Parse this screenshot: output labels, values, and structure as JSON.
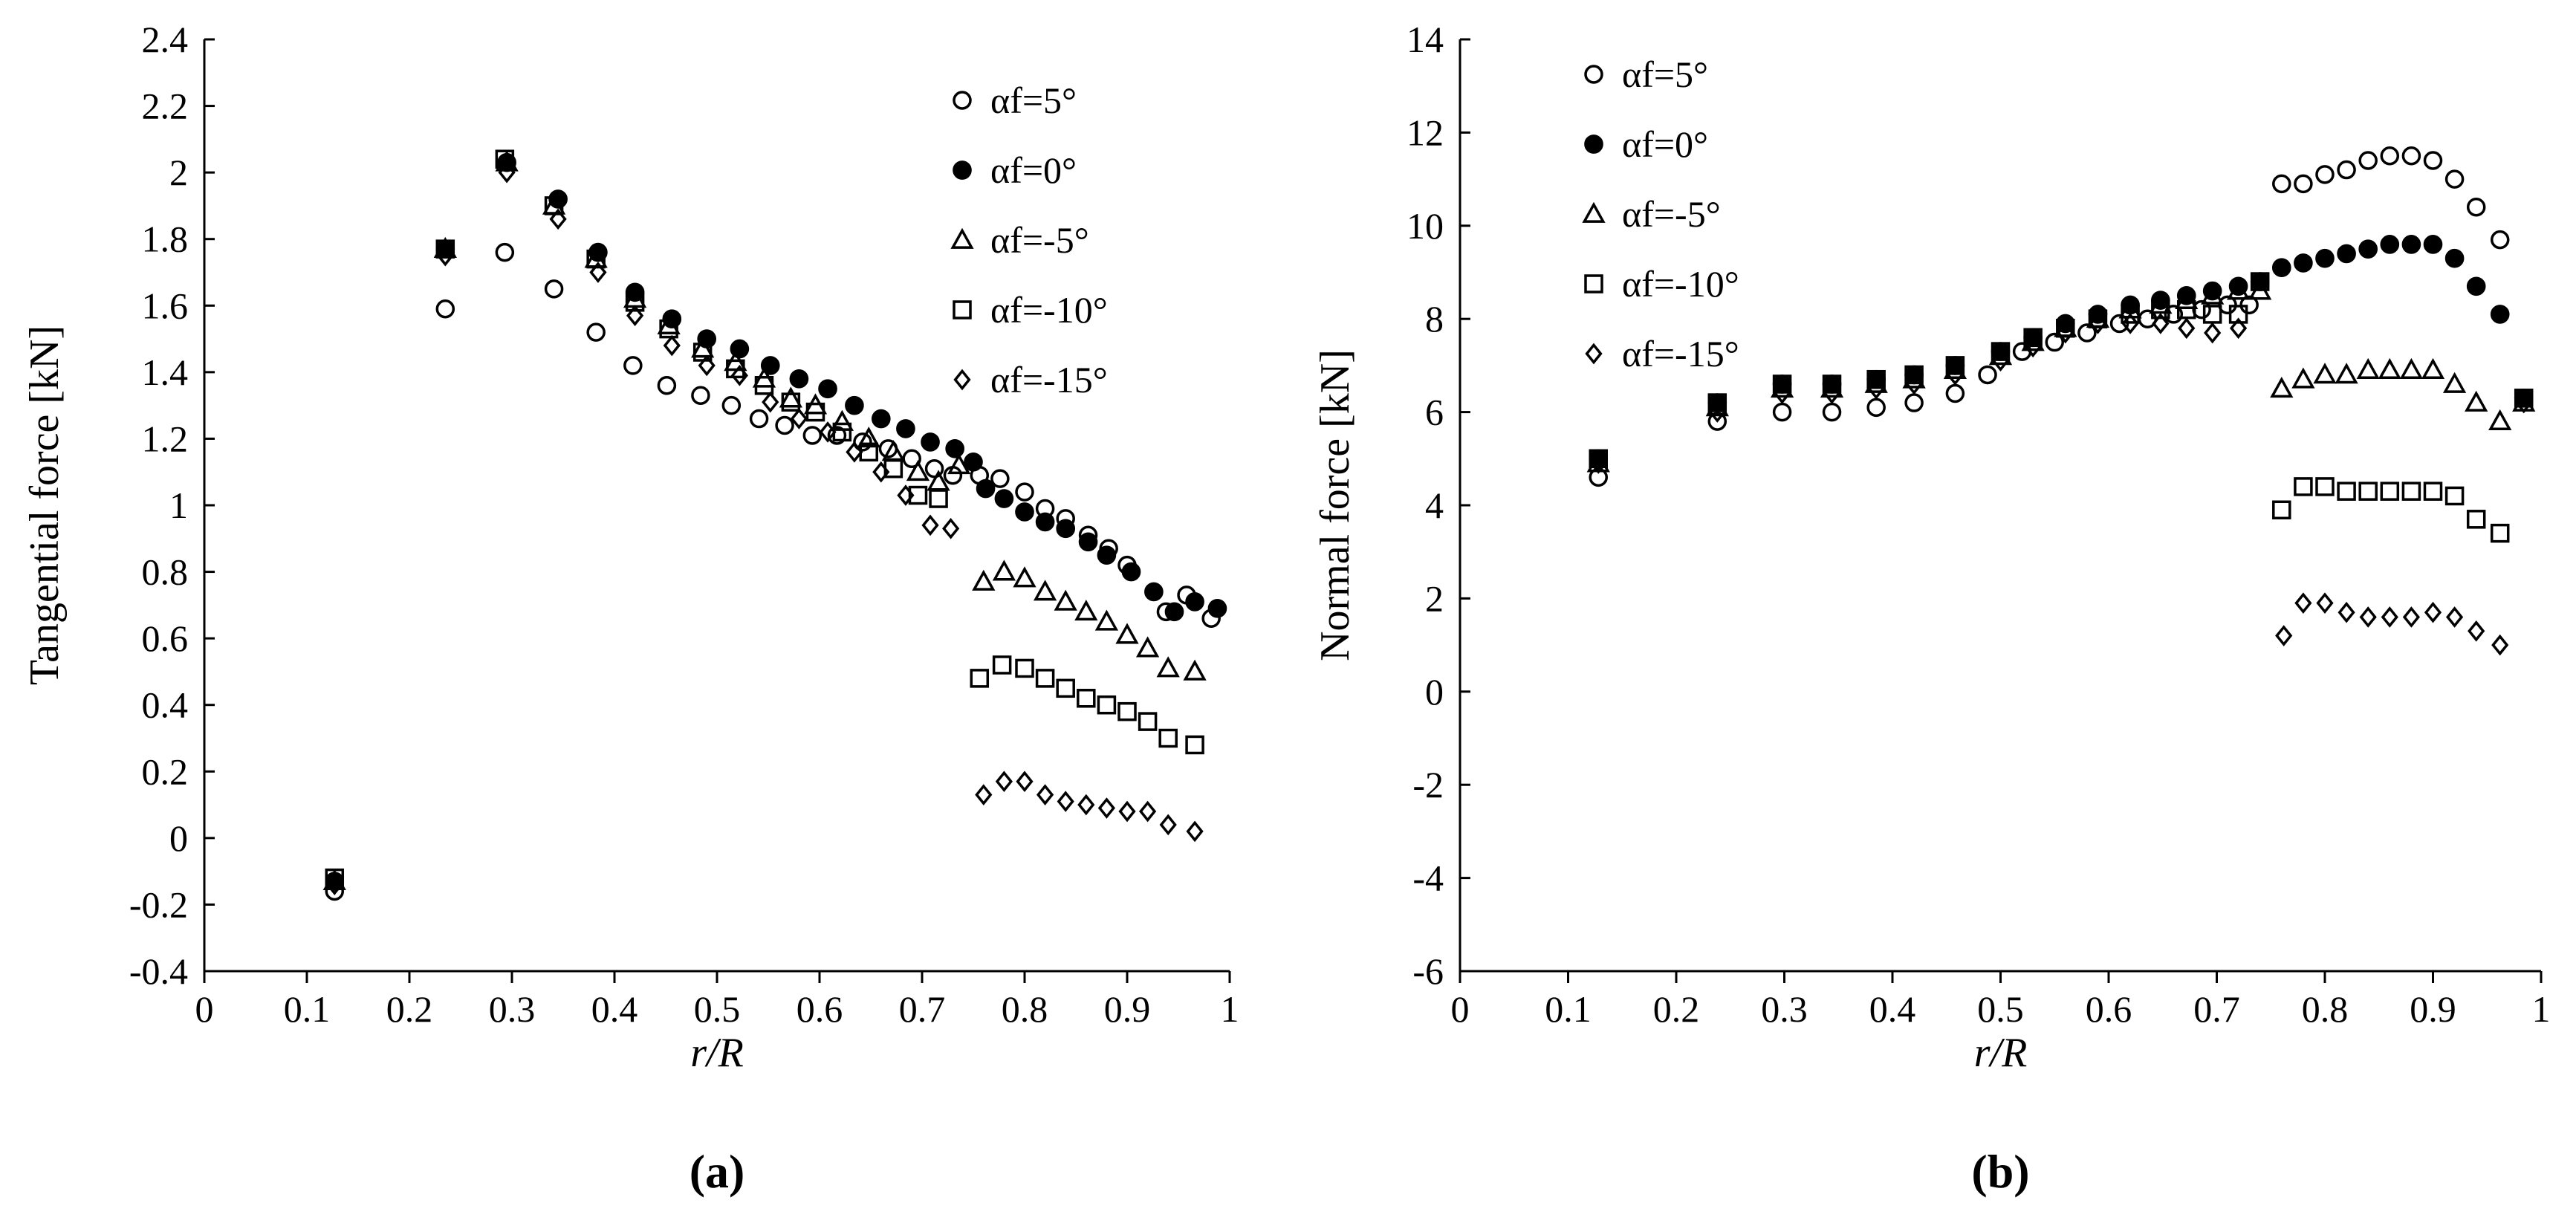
{
  "chart_data": [
    {
      "type": "scatter",
      "panel_label": "(a)",
      "xlabel": "r/R",
      "ylabel": "Tangential force [kN]",
      "xlim": [
        0,
        1
      ],
      "ylim": [
        -0.4,
        2.4
      ],
      "x_ticks": [
        0,
        0.1,
        0.2,
        0.3,
        0.4,
        0.5,
        0.6,
        0.7,
        0.8,
        0.9,
        1
      ],
      "x_tick_labels": [
        "0",
        "0.1",
        "0.2",
        "0.3",
        "0.4",
        "0.5",
        "0.6",
        "0.7",
        "0.8",
        "0.9",
        "1"
      ],
      "y_ticks": [
        -0.4,
        -0.2,
        0,
        0.2,
        0.4,
        0.6,
        0.8,
        1,
        1.2,
        1.4,
        1.6,
        1.8,
        2,
        2.2,
        2.4
      ],
      "y_tick_labels": [
        "-0.4",
        "-0.2",
        "0",
        "0.2",
        "0.4",
        "0.6",
        "0.8",
        "1",
        "1.2",
        "1.4",
        "1.6",
        "1.8",
        "2",
        "2.2",
        "2.4"
      ],
      "legend_position": "top-right",
      "series": [
        {
          "name": "αf=5°",
          "marker": "circle-open",
          "x": [
            0.127,
            0.235,
            0.293,
            0.341,
            0.382,
            0.418,
            0.451,
            0.484,
            0.514,
            0.541,
            0.566,
            0.593,
            0.617,
            0.642,
            0.667,
            0.69,
            0.712,
            0.73,
            0.756,
            0.776,
            0.8,
            0.82,
            0.84,
            0.862,
            0.882,
            0.9,
            0.938,
            0.958,
            0.982
          ],
          "y": [
            -0.16,
            1.59,
            1.76,
            1.65,
            1.52,
            1.42,
            1.36,
            1.33,
            1.3,
            1.26,
            1.24,
            1.21,
            1.21,
            1.19,
            1.17,
            1.14,
            1.11,
            1.09,
            1.09,
            1.08,
            1.04,
            0.99,
            0.96,
            0.91,
            0.87,
            0.82,
            0.68,
            0.73,
            0.66
          ]
        },
        {
          "name": "αf=0°",
          "marker": "circle-filled",
          "x": [
            0.127,
            0.235,
            0.295,
            0.345,
            0.384,
            0.42,
            0.456,
            0.49,
            0.522,
            0.552,
            0.58,
            0.608,
            0.634,
            0.66,
            0.684,
            0.708,
            0.732,
            0.75,
            0.762,
            0.78,
            0.8,
            0.82,
            0.84,
            0.862,
            0.88,
            0.904,
            0.926,
            0.946,
            0.966,
            0.988
          ],
          "y": [
            -0.13,
            1.77,
            2.03,
            1.92,
            1.76,
            1.64,
            1.56,
            1.5,
            1.47,
            1.42,
            1.38,
            1.35,
            1.3,
            1.26,
            1.23,
            1.19,
            1.17,
            1.13,
            1.05,
            1.02,
            0.98,
            0.95,
            0.93,
            0.89,
            0.85,
            0.8,
            0.74,
            0.68,
            0.71,
            0.69
          ]
        },
        {
          "name": "αf=-5°",
          "marker": "triangle-open",
          "x": [
            0.127,
            0.235,
            0.295,
            0.341,
            0.382,
            0.42,
            0.453,
            0.486,
            0.518,
            0.546,
            0.572,
            0.596,
            0.622,
            0.648,
            0.672,
            0.696,
            0.716,
            0.736,
            0.76,
            0.78,
            0.8,
            0.82,
            0.84,
            0.86,
            0.88,
            0.9,
            0.92,
            0.94,
            0.966
          ],
          "y": [
            -0.13,
            1.77,
            2.03,
            1.9,
            1.74,
            1.62,
            1.54,
            1.47,
            1.43,
            1.38,
            1.32,
            1.3,
            1.25,
            1.2,
            1.16,
            1.1,
            1.07,
            1.12,
            0.77,
            0.8,
            0.78,
            0.74,
            0.71,
            0.68,
            0.65,
            0.61,
            0.57,
            0.51,
            0.5
          ]
        },
        {
          "name": "αf=-10°",
          "marker": "square-open",
          "x": [
            0.127,
            0.235,
            0.293,
            0.341,
            0.382,
            0.42,
            0.453,
            0.486,
            0.518,
            0.546,
            0.572,
            0.596,
            0.622,
            0.648,
            0.672,
            0.696,
            0.716,
            0.756,
            0.778,
            0.8,
            0.82,
            0.84,
            0.86,
            0.88,
            0.9,
            0.92,
            0.94,
            0.966
          ],
          "y": [
            -0.12,
            1.77,
            2.04,
            1.9,
            1.74,
            1.61,
            1.53,
            1.46,
            1.41,
            1.36,
            1.31,
            1.28,
            1.22,
            1.16,
            1.11,
            1.03,
            1.02,
            0.48,
            0.52,
            0.51,
            0.48,
            0.45,
            0.42,
            0.4,
            0.38,
            0.35,
            0.3,
            0.28
          ]
        },
        {
          "name": "αf=-15°",
          "marker": "diamond-open",
          "x": [
            0.127,
            0.235,
            0.295,
            0.345,
            0.384,
            0.42,
            0.456,
            0.49,
            0.522,
            0.552,
            0.58,
            0.608,
            0.634,
            0.66,
            0.684,
            0.708,
            0.728,
            0.76,
            0.78,
            0.8,
            0.82,
            0.84,
            0.86,
            0.88,
            0.9,
            0.92,
            0.94,
            0.966
          ],
          "y": [
            -0.14,
            1.75,
            2.0,
            1.86,
            1.7,
            1.57,
            1.48,
            1.42,
            1.39,
            1.31,
            1.26,
            1.22,
            1.16,
            1.1,
            1.03,
            0.94,
            0.93,
            0.13,
            0.17,
            0.17,
            0.13,
            0.11,
            0.1,
            0.09,
            0.08,
            0.08,
            0.04,
            0.02
          ]
        }
      ]
    },
    {
      "type": "scatter",
      "panel_label": "(b)",
      "xlabel": "r/R",
      "ylabel": "Normal force [kN]",
      "xlim": [
        0,
        1
      ],
      "ylim": [
        -6,
        14
      ],
      "x_ticks": [
        0,
        0.1,
        0.2,
        0.3,
        0.4,
        0.5,
        0.6,
        0.7,
        0.8,
        0.9,
        1
      ],
      "x_tick_labels": [
        "0",
        "0.1",
        "0.2",
        "0.3",
        "0.4",
        "0.5",
        "0.6",
        "0.7",
        "0.8",
        "0.9",
        "1"
      ],
      "y_ticks": [
        -6,
        -4,
        -2,
        0,
        2,
        4,
        6,
        8,
        10,
        12,
        14
      ],
      "y_tick_labels": [
        "-6",
        "-4",
        "-2",
        "0",
        "2",
        "4",
        "6",
        "8",
        "10",
        "12",
        "14"
      ],
      "legend_position": "top-left",
      "series": [
        {
          "name": "αf=5°",
          "marker": "circle-open",
          "x": [
            0.128,
            0.238,
            0.298,
            0.344,
            0.385,
            0.42,
            0.458,
            0.488,
            0.52,
            0.55,
            0.58,
            0.61,
            0.636,
            0.66,
            0.686,
            0.71,
            0.73,
            0.76,
            0.78,
            0.8,
            0.82,
            0.84,
            0.86,
            0.88,
            0.9,
            0.92,
            0.94,
            0.962
          ],
          "y": [
            4.6,
            5.8,
            6.0,
            6.0,
            6.1,
            6.2,
            6.4,
            6.8,
            7.3,
            7.5,
            7.7,
            7.9,
            8.0,
            8.1,
            8.2,
            8.3,
            8.3,
            10.9,
            10.9,
            11.1,
            11.2,
            11.4,
            11.5,
            11.5,
            11.4,
            11.0,
            10.4,
            9.7
          ]
        },
        {
          "name": "αf=0°",
          "marker": "circle-filled",
          "x": [
            0.128,
            0.238,
            0.298,
            0.344,
            0.385,
            0.42,
            0.458,
            0.5,
            0.53,
            0.56,
            0.59,
            0.62,
            0.648,
            0.672,
            0.696,
            0.72,
            0.74,
            0.76,
            0.78,
            0.8,
            0.82,
            0.84,
            0.86,
            0.88,
            0.9,
            0.92,
            0.94,
            0.962,
            0.984
          ],
          "y": [
            5.0,
            6.2,
            6.6,
            6.6,
            6.7,
            6.8,
            7.0,
            7.3,
            7.6,
            7.9,
            8.1,
            8.3,
            8.4,
            8.5,
            8.6,
            8.7,
            8.8,
            9.1,
            9.2,
            9.3,
            9.4,
            9.5,
            9.6,
            9.6,
            9.6,
            9.3,
            8.7,
            8.1,
            6.3
          ]
        },
        {
          "name": "αf=-5°",
          "marker": "triangle-open",
          "x": [
            0.128,
            0.238,
            0.298,
            0.344,
            0.385,
            0.42,
            0.458,
            0.5,
            0.53,
            0.56,
            0.59,
            0.62,
            0.648,
            0.672,
            0.696,
            0.72,
            0.74,
            0.76,
            0.78,
            0.8,
            0.82,
            0.84,
            0.86,
            0.88,
            0.9,
            0.92,
            0.94,
            0.962,
            0.984
          ],
          "y": [
            4.9,
            6.1,
            6.5,
            6.5,
            6.6,
            6.7,
            6.9,
            7.2,
            7.5,
            7.8,
            8.0,
            8.2,
            8.3,
            8.4,
            8.5,
            8.6,
            8.6,
            6.5,
            6.7,
            6.8,
            6.8,
            6.9,
            6.9,
            6.9,
            6.9,
            6.6,
            6.2,
            5.8,
            6.2
          ]
        },
        {
          "name": "αf=-10°",
          "marker": "square-open",
          "x": [
            0.128,
            0.238,
            0.298,
            0.344,
            0.385,
            0.42,
            0.458,
            0.5,
            0.53,
            0.56,
            0.59,
            0.62,
            0.648,
            0.672,
            0.696,
            0.72,
            0.74,
            0.76,
            0.78,
            0.8,
            0.82,
            0.84,
            0.86,
            0.88,
            0.9,
            0.92,
            0.94,
            0.962,
            0.984
          ],
          "y": [
            5.0,
            6.2,
            6.6,
            6.6,
            6.7,
            6.8,
            7.0,
            7.3,
            7.6,
            7.8,
            8.0,
            8.1,
            8.2,
            8.2,
            8.1,
            8.1,
            8.8,
            3.9,
            4.4,
            4.4,
            4.3,
            4.3,
            4.3,
            4.3,
            4.3,
            4.2,
            3.7,
            3.4,
            6.3
          ]
        },
        {
          "name": "αf=-15°",
          "marker": "diamond-open",
          "x": [
            0.128,
            0.238,
            0.298,
            0.344,
            0.385,
            0.42,
            0.458,
            0.5,
            0.53,
            0.56,
            0.59,
            0.62,
            0.648,
            0.672,
            0.696,
            0.72,
            0.762,
            0.78,
            0.8,
            0.82,
            0.84,
            0.86,
            0.88,
            0.9,
            0.92,
            0.94,
            0.962,
            0.984
          ],
          "y": [
            4.9,
            6.0,
            6.4,
            6.4,
            6.5,
            6.6,
            6.8,
            7.1,
            7.4,
            7.7,
            7.9,
            7.9,
            7.9,
            7.8,
            7.7,
            7.8,
            1.2,
            1.9,
            1.9,
            1.7,
            1.6,
            1.6,
            1.6,
            1.7,
            1.6,
            1.3,
            1.0,
            6.2
          ]
        }
      ]
    }
  ]
}
